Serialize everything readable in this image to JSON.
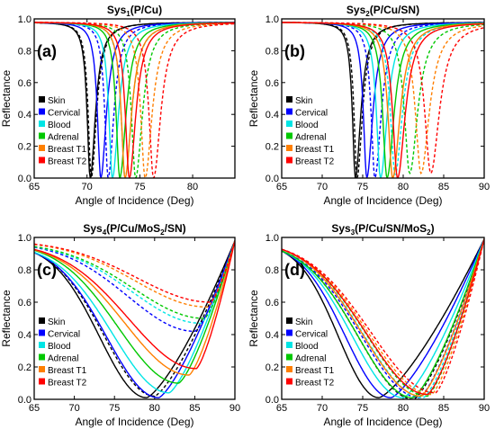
{
  "figure": {
    "legend_labels": [
      "Skin",
      "Cervical",
      "Blood",
      "Adrenal",
      "Breast T1",
      "Breast T2"
    ],
    "colors": {
      "Skin": "#000000",
      "Cervical": "#0000ff",
      "Blood": "#00e5e5",
      "Adrenal": "#00c800",
      "Breast T1": "#ff7f00",
      "Breast T2": "#ff0000"
    }
  },
  "chart_data": [
    {
      "type": "line",
      "panel_label": "(a)",
      "title_main": "Sys",
      "title_sub": "1",
      "title_rest": "(P/Cu)",
      "xlabel": "Angle of Incidence (Deg)",
      "ylabel": "Reflectance",
      "xlim": [
        65,
        84
      ],
      "ylim": [
        0,
        1
      ],
      "xticks": [
        65,
        70,
        75,
        80
      ],
      "yticks": [
        0.0,
        0.2,
        0.4,
        0.6,
        0.8,
        1.0
      ],
      "baseline": 0.98,
      "series": [
        {
          "name": "Skin",
          "style": "solid",
          "min_x": 70.3,
          "min_y": 0.0,
          "wl": 0.35,
          "wr": 0.6
        },
        {
          "name": "Skin",
          "style": "dashed",
          "min_x": 70.4,
          "min_y": 0.0,
          "wl": 0.35,
          "wr": 0.6
        },
        {
          "name": "Cervical",
          "style": "solid",
          "min_x": 71.3,
          "min_y": 0.0,
          "wl": 0.38,
          "wr": 0.65
        },
        {
          "name": "Cervical",
          "style": "dashed",
          "min_x": 72.0,
          "min_y": 0.0,
          "wl": 0.38,
          "wr": 0.65
        },
        {
          "name": "Blood",
          "style": "solid",
          "min_x": 72.4,
          "min_y": 0.0,
          "wl": 0.4,
          "wr": 0.7
        },
        {
          "name": "Blood",
          "style": "dashed",
          "min_x": 73.6,
          "min_y": 0.0,
          "wl": 0.45,
          "wr": 0.75
        },
        {
          "name": "Adrenal",
          "style": "solid",
          "min_x": 73.1,
          "min_y": 0.0,
          "wl": 0.42,
          "wr": 0.72
        },
        {
          "name": "Adrenal",
          "style": "dashed",
          "min_x": 74.6,
          "min_y": 0.0,
          "wl": 0.48,
          "wr": 0.78
        },
        {
          "name": "Breast T1",
          "style": "solid",
          "min_x": 73.6,
          "min_y": 0.0,
          "wl": 0.44,
          "wr": 0.74
        },
        {
          "name": "Breast T1",
          "style": "dashed",
          "min_x": 75.5,
          "min_y": 0.0,
          "wl": 0.5,
          "wr": 0.8
        },
        {
          "name": "Breast T2",
          "style": "solid",
          "min_x": 74.0,
          "min_y": 0.0,
          "wl": 0.45,
          "wr": 0.75
        },
        {
          "name": "Breast T2",
          "style": "dashed",
          "min_x": 76.3,
          "min_y": 0.0,
          "wl": 0.52,
          "wr": 0.82
        }
      ]
    },
    {
      "type": "line",
      "panel_label": "(b)",
      "title_main": "Sys",
      "title_sub": "2",
      "title_rest": "(P/Cu/SN)",
      "xlabel": "Angle of Incidence (Deg)",
      "ylabel": "Reflectance",
      "xlim": [
        65,
        90
      ],
      "ylim": [
        0,
        1
      ],
      "xticks": [
        65,
        70,
        75,
        80,
        85,
        90
      ],
      "yticks": [
        0.0,
        0.2,
        0.4,
        0.6,
        0.8,
        1.0
      ],
      "baseline": 0.98,
      "series": [
        {
          "name": "Skin",
          "style": "solid",
          "min_x": 74.1,
          "min_y": 0.0,
          "wl": 0.45,
          "wr": 0.8
        },
        {
          "name": "Skin",
          "style": "dashed",
          "min_x": 74.3,
          "min_y": 0.0,
          "wl": 0.45,
          "wr": 0.8
        },
        {
          "name": "Cervical",
          "style": "solid",
          "min_x": 75.5,
          "min_y": 0.0,
          "wl": 0.5,
          "wr": 0.9
        },
        {
          "name": "Cervical",
          "style": "dashed",
          "min_x": 76.5,
          "min_y": 0.0,
          "wl": 0.55,
          "wr": 0.95
        },
        {
          "name": "Blood",
          "style": "solid",
          "min_x": 77.2,
          "min_y": 0.0,
          "wl": 0.6,
          "wr": 1.0
        },
        {
          "name": "Blood",
          "style": "dashed",
          "min_x": 79.0,
          "min_y": 0.02,
          "wl": 0.7,
          "wr": 1.1
        },
        {
          "name": "Adrenal",
          "style": "solid",
          "min_x": 78.0,
          "min_y": 0.0,
          "wl": 0.65,
          "wr": 1.05
        },
        {
          "name": "Adrenal",
          "style": "dashed",
          "min_x": 80.8,
          "min_y": 0.03,
          "wl": 0.8,
          "wr": 1.2
        },
        {
          "name": "Breast T1",
          "style": "solid",
          "min_x": 78.7,
          "min_y": 0.0,
          "wl": 0.7,
          "wr": 1.1
        },
        {
          "name": "Breast T1",
          "style": "dashed",
          "min_x": 82.2,
          "min_y": 0.03,
          "wl": 0.85,
          "wr": 1.25
        },
        {
          "name": "Breast T2",
          "style": "solid",
          "min_x": 79.3,
          "min_y": 0.0,
          "wl": 0.72,
          "wr": 1.15
        },
        {
          "name": "Breast T2",
          "style": "dashed",
          "min_x": 83.4,
          "min_y": 0.03,
          "wl": 0.9,
          "wr": 1.3
        }
      ]
    },
    {
      "type": "line",
      "panel_label": "(c)",
      "title_main": "Sys",
      "title_sub": "4",
      "title_rest": "(P/Cu/MoS",
      "title_sub2": "2",
      "title_end": "/SN)",
      "xlabel": "Angle of Incidence (Deg)",
      "ylabel": "Reflectance",
      "xlim": [
        65,
        90
      ],
      "ylim": [
        0,
        1
      ],
      "xticks": [
        65,
        70,
        75,
        80,
        85,
        90
      ],
      "yticks": [
        0.0,
        0.2,
        0.4,
        0.6,
        0.8,
        1.0
      ],
      "series": [
        {
          "name": "Skin",
          "style": "solid",
          "left_y": 0.96,
          "min_x": 79.0,
          "min_y": 0.01,
          "end_y": 0.98
        },
        {
          "name": "Skin",
          "style": "dashed",
          "left_y": 0.96,
          "min_x": 80.0,
          "min_y": 0.02,
          "end_y": 0.98
        },
        {
          "name": "Cervical",
          "style": "solid",
          "left_y": 0.96,
          "min_x": 80.5,
          "min_y": 0.01,
          "end_y": 0.98
        },
        {
          "name": "Cervical",
          "style": "dashed",
          "left_y": 0.97,
          "min_x": 85.0,
          "min_y": 0.42,
          "end_y": 0.98
        },
        {
          "name": "Blood",
          "style": "solid",
          "left_y": 0.96,
          "min_x": 81.8,
          "min_y": 0.04,
          "end_y": 0.98
        },
        {
          "name": "Blood",
          "style": "dashed",
          "left_y": 0.97,
          "min_x": 85.8,
          "min_y": 0.47,
          "end_y": 0.98
        },
        {
          "name": "Adrenal",
          "style": "solid",
          "left_y": 0.97,
          "min_x": 83.0,
          "min_y": 0.1,
          "end_y": 0.98
        },
        {
          "name": "Adrenal",
          "style": "dashed",
          "left_y": 0.97,
          "min_x": 86.2,
          "min_y": 0.5,
          "end_y": 0.98
        },
        {
          "name": "Breast T1",
          "style": "solid",
          "left_y": 0.97,
          "min_x": 84.3,
          "min_y": 0.15,
          "end_y": 0.98
        },
        {
          "name": "Breast T1",
          "style": "dashed",
          "left_y": 0.98,
          "min_x": 86.6,
          "min_y": 0.57,
          "end_y": 0.98
        },
        {
          "name": "Breast T2",
          "style": "solid",
          "left_y": 0.97,
          "min_x": 85.2,
          "min_y": 0.19,
          "end_y": 0.98
        },
        {
          "name": "Breast T2",
          "style": "dashed",
          "left_y": 0.98,
          "min_x": 87.0,
          "min_y": 0.6,
          "end_y": 0.98
        }
      ]
    },
    {
      "type": "line",
      "panel_label": "(d)",
      "title_main": "Sys",
      "title_sub": "3",
      "title_rest": "(P/Cu/SN/MoS",
      "title_sub2": "2",
      "title_end": ")",
      "xlabel": "Angle of Incidence (Deg)",
      "ylabel": "Reflectance",
      "xlim": [
        65,
        90
      ],
      "ylim": [
        0,
        1
      ],
      "xticks": [
        65,
        70,
        75,
        80,
        85,
        90
      ],
      "yticks": [
        0.0,
        0.2,
        0.4,
        0.6,
        0.8,
        1.0
      ],
      "series": [
        {
          "name": "Skin",
          "style": "solid",
          "left_y": 0.97,
          "min_x": 77.0,
          "min_y": 0.01,
          "end_y": 0.99
        },
        {
          "name": "Skin",
          "style": "dashed",
          "left_y": 0.97,
          "min_x": 81.3,
          "min_y": 0.0,
          "end_y": 0.99
        },
        {
          "name": "Cervical",
          "style": "solid",
          "left_y": 0.97,
          "min_x": 78.5,
          "min_y": 0.01,
          "end_y": 0.99
        },
        {
          "name": "Cervical",
          "style": "dashed",
          "left_y": 0.97,
          "min_x": 82.0,
          "min_y": 0.01,
          "end_y": 0.99
        },
        {
          "name": "Blood",
          "style": "solid",
          "left_y": 0.97,
          "min_x": 80.0,
          "min_y": 0.01,
          "end_y": 0.99
        },
        {
          "name": "Blood",
          "style": "dashed",
          "left_y": 0.98,
          "min_x": 82.5,
          "min_y": 0.01,
          "end_y": 0.99
        },
        {
          "name": "Adrenal",
          "style": "solid",
          "left_y": 0.97,
          "min_x": 81.2,
          "min_y": 0.01,
          "end_y": 0.99
        },
        {
          "name": "Adrenal",
          "style": "dashed",
          "left_y": 0.98,
          "min_x": 83.0,
          "min_y": 0.02,
          "end_y": 0.99
        },
        {
          "name": "Breast T1",
          "style": "solid",
          "left_y": 0.98,
          "min_x": 82.2,
          "min_y": 0.02,
          "end_y": 0.99
        },
        {
          "name": "Breast T1",
          "style": "dashed",
          "left_y": 0.98,
          "min_x": 83.5,
          "min_y": 0.03,
          "end_y": 0.99
        },
        {
          "name": "Breast T2",
          "style": "solid",
          "left_y": 0.98,
          "min_x": 83.0,
          "min_y": 0.03,
          "end_y": 0.99
        },
        {
          "name": "Breast T2",
          "style": "dashed",
          "left_y": 0.98,
          "min_x": 84.0,
          "min_y": 0.04,
          "end_y": 0.99
        }
      ]
    }
  ]
}
